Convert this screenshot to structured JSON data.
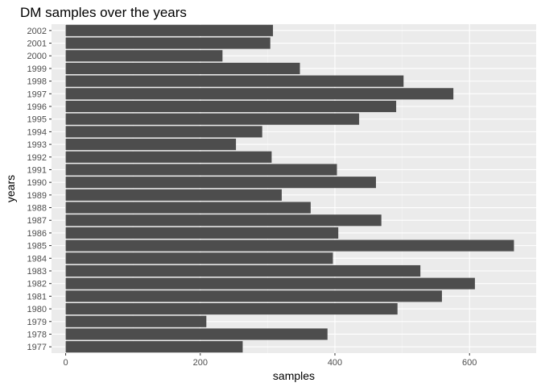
{
  "chart_data": {
    "type": "bar",
    "orientation": "horizontal",
    "title": "DM samples over the years",
    "xlabel": "samples",
    "ylabel": "years",
    "categories": [
      "1977",
      "1978",
      "1979",
      "1980",
      "1981",
      "1982",
      "1983",
      "1984",
      "1985",
      "1986",
      "1987",
      "1988",
      "1989",
      "1990",
      "1991",
      "1992",
      "1993",
      "1994",
      "1995",
      "1996",
      "1997",
      "1998",
      "1999",
      "2000",
      "2001",
      "2002"
    ],
    "values": [
      263,
      389,
      209,
      493,
      559,
      608,
      527,
      397,
      666,
      405,
      469,
      364,
      321,
      461,
      403,
      306,
      253,
      292,
      436,
      491,
      576,
      502,
      348,
      233,
      304,
      308
    ],
    "xlim": [
      -21,
      699
    ],
    "xticks": [
      0,
      200,
      400,
      600
    ],
    "grid": true,
    "legend": "none",
    "colors": {
      "bar": "#4d4d4d",
      "panel": "#ebebeb",
      "grid_major": "#ffffff",
      "grid_minor": "#f5f5f5",
      "tick_text": "#4d4d4d"
    }
  }
}
